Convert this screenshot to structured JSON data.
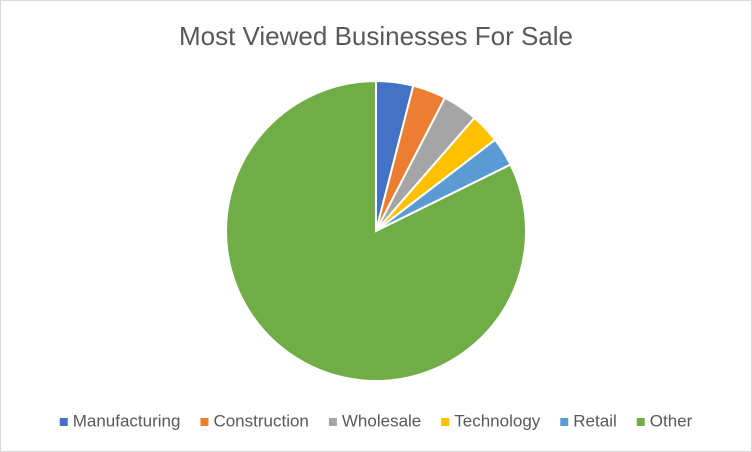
{
  "chart_data": {
    "type": "pie",
    "title": "Most Viewed Businesses For Sale",
    "categories": [
      "Manufacturing",
      "Construction",
      "Wholesale",
      "Technology",
      "Retail",
      "Other"
    ],
    "values": [
      4,
      3.6,
      3.8,
      3.2,
      3.1,
      82.3
    ],
    "colors": [
      "#4472c4",
      "#ed7d31",
      "#a5a5a5",
      "#ffc000",
      "#5b9bd5",
      "#70ad47"
    ],
    "legend": "bottom"
  }
}
